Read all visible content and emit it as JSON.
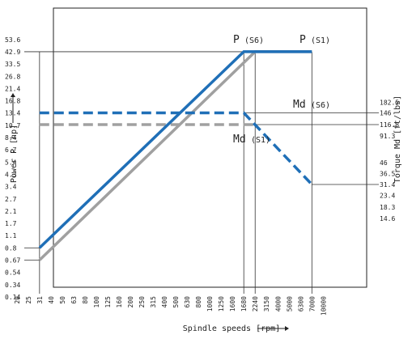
{
  "chart_data": {
    "type": "line",
    "xlabel": "Spindle speeds [rpm]",
    "ylabel_left": "Power P [hp]",
    "ylabel_right": "Torque Md [ft/lbs]",
    "x_ticks": [
      "20",
      "25",
      "31",
      "40",
      "50",
      "63",
      "80",
      "100",
      "125",
      "160",
      "200",
      "250",
      "315",
      "400",
      "500",
      "630",
      "800",
      "1000",
      "1250",
      "1600",
      "1680",
      "2240",
      "3150",
      "4000",
      "5000",
      "6300",
      "7000",
      "10000"
    ],
    "y_left_ticks": [
      "53.6",
      "42.9",
      "33.5",
      "26.8",
      "21.4",
      "16.8",
      "13.4",
      "10.7",
      "8.4",
      "6.7",
      "5.4",
      "4.3",
      "3.4",
      "2.7",
      "2.1",
      "1.7",
      "1.1",
      "0.8",
      "0.67",
      "0.54",
      "0.34",
      "0.14"
    ],
    "y_right_ticks": [
      "182.5",
      "146",
      "116.8",
      "91.3",
      "46",
      "36.5",
      "31.4",
      "23.4",
      "18.3",
      "14.6"
    ],
    "colors": {
      "s6": "#1f6fb7",
      "s1": "#a0a0a0",
      "frame": "#222222",
      "guide": "#333333"
    },
    "series": [
      {
        "name": "P (S6)",
        "label_main": "P",
        "label_sub": "(S6)",
        "axis": "left",
        "style": "solid",
        "color": "#1f6fb7",
        "points": [
          [
            "31",
            "0.8"
          ],
          [
            "1680",
            "42.9"
          ],
          [
            "7000",
            "42.9"
          ]
        ]
      },
      {
        "name": "P (S1)",
        "label_main": "P",
        "label_sub": "(S1)",
        "axis": "left",
        "style": "solid",
        "color": "#a0a0a0",
        "points": [
          [
            "31",
            "0.67"
          ],
          [
            "2240",
            "42.9"
          ],
          [
            "7000",
            "42.9"
          ]
        ]
      },
      {
        "name": "Md (S6)",
        "label_main": "Md",
        "label_sub": "(S6)",
        "axis": "right",
        "style": "dashed",
        "color": "#1f6fb7",
        "points": [
          [
            "31",
            "146"
          ],
          [
            "1680",
            "146"
          ],
          [
            "7000",
            "31.4"
          ]
        ]
      },
      {
        "name": "Md (S1)",
        "label_main": "Md",
        "label_sub": "(S1)",
        "axis": "right",
        "style": "dashed",
        "color": "#a0a0a0",
        "points": [
          [
            "31",
            "116.8"
          ],
          [
            "2240",
            "116.8"
          ]
        ]
      }
    ],
    "guides": {
      "vertical_x": [
        "31",
        "1680",
        "2240",
        "7000"
      ],
      "left_y": [
        "42.9",
        "0.8",
        "0.67"
      ],
      "right_y": [
        "146",
        "116.8",
        "31.4"
      ]
    }
  }
}
